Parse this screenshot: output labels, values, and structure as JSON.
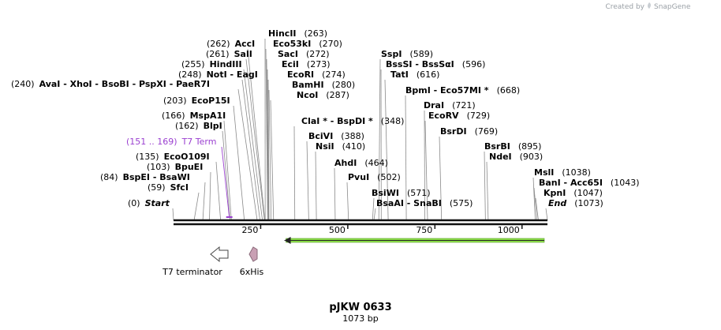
{
  "brand": {
    "prefix": "Created by",
    "name": "SnapGene"
  },
  "plasmid": {
    "name": "pJKW 0633",
    "length": "1073 bp",
    "total_bp": 1073
  },
  "axis": {
    "ticks": [
      250,
      500,
      750,
      1000
    ]
  },
  "sites": [
    {
      "pos": "(240)",
      "label": "AvaI  - XhoI  - BsoBI  - PspXI  - PaeR7I",
      "bp": 240
    },
    {
      "pos": "(262)",
      "label": "AccI",
      "bp": 262
    },
    {
      "pos": "(261)",
      "label": "SalI",
      "bp": 261
    },
    {
      "pos": "(255)",
      "label": "HindIII",
      "bp": 255
    },
    {
      "pos": "(248)",
      "label": "NotI  - EagI",
      "bp": 248
    },
    {
      "pos": "(203)",
      "label": "EcoP15I",
      "bp": 203
    },
    {
      "pos": "(166)",
      "label": "MspA1I",
      "bp": 166
    },
    {
      "pos": "(162)",
      "label": "BlpI",
      "bp": 162
    },
    {
      "pos": "(135)",
      "label": "EcoO109I",
      "bp": 135
    },
    {
      "pos": "(103)",
      "label": "BpuEI",
      "bp": 103
    },
    {
      "pos": "(84)",
      "label": "BspEI  - BsaWI",
      "bp": 84
    },
    {
      "pos": "(59)",
      "label": "SfcI",
      "bp": 59
    },
    {
      "pos": "(0)",
      "label": "Start",
      "bp": 0,
      "italic": true
    },
    {
      "pos": "(263)",
      "label": "HincII",
      "bp": 263
    },
    {
      "pos": "(270)",
      "label": "Eco53kI",
      "bp": 270
    },
    {
      "pos": "(272)",
      "label": "SacI",
      "bp": 272
    },
    {
      "pos": "(273)",
      "label": "EciI",
      "bp": 273
    },
    {
      "pos": "(274)",
      "label": "EcoRI",
      "bp": 274
    },
    {
      "pos": "(280)",
      "label": "BamHI",
      "bp": 280
    },
    {
      "pos": "(287)",
      "label": "NcoI",
      "bp": 287
    },
    {
      "pos": "(348)",
      "label": "ClaI *  - BspDI *",
      "bp": 348
    },
    {
      "pos": "(388)",
      "label": "BciVI",
      "bp": 388
    },
    {
      "pos": "(410)",
      "label": "NsiI",
      "bp": 410
    },
    {
      "pos": "(464)",
      "label": "AhdI",
      "bp": 464
    },
    {
      "pos": "(502)",
      "label": "PvuI",
      "bp": 502
    },
    {
      "pos": "(571)",
      "label": "BsiWI",
      "bp": 571
    },
    {
      "pos": "(575)",
      "label": "BsaAI  - SnaBI",
      "bp": 575
    },
    {
      "pos": "(589)",
      "label": "SspI",
      "bp": 589
    },
    {
      "pos": "(596)",
      "label": "BssSI  - BssSαI",
      "bp": 596
    },
    {
      "pos": "(616)",
      "label": "TatI",
      "bp": 616
    },
    {
      "pos": "(668)",
      "label": "BpmI  - Eco57MI *",
      "bp": 668
    },
    {
      "pos": "(721)",
      "label": "DraI",
      "bp": 721
    },
    {
      "pos": "(729)",
      "label": "EcoRV",
      "bp": 729
    },
    {
      "pos": "(769)",
      "label": "BsrDI",
      "bp": 769
    },
    {
      "pos": "(895)",
      "label": "BsrBI",
      "bp": 895
    },
    {
      "pos": "(903)",
      "label": "NdeI",
      "bp": 903
    },
    {
      "pos": "(1038)",
      "label": "MslI",
      "bp": 1038
    },
    {
      "pos": "(1043)",
      "label": "BanI  - Acc65I",
      "bp": 1043
    },
    {
      "pos": "(1047)",
      "label": "KpnI",
      "bp": 1047
    },
    {
      "pos": "(1073)",
      "label": "End",
      "bp": 1073,
      "italic": true
    }
  ],
  "t7term_site": {
    "pos": "(151 .. 169)",
    "label": "T7 Term"
  },
  "features": [
    {
      "name": "T7 terminator",
      "color": "#ffffff",
      "stroke": "#555555"
    },
    {
      "name": "6xHis",
      "color": "#c9a0b4",
      "stroke": "#8a6a7a"
    }
  ],
  "orf": {
    "color": "#8ee04a",
    "start_bp": 300,
    "end_bp": 1073
  }
}
